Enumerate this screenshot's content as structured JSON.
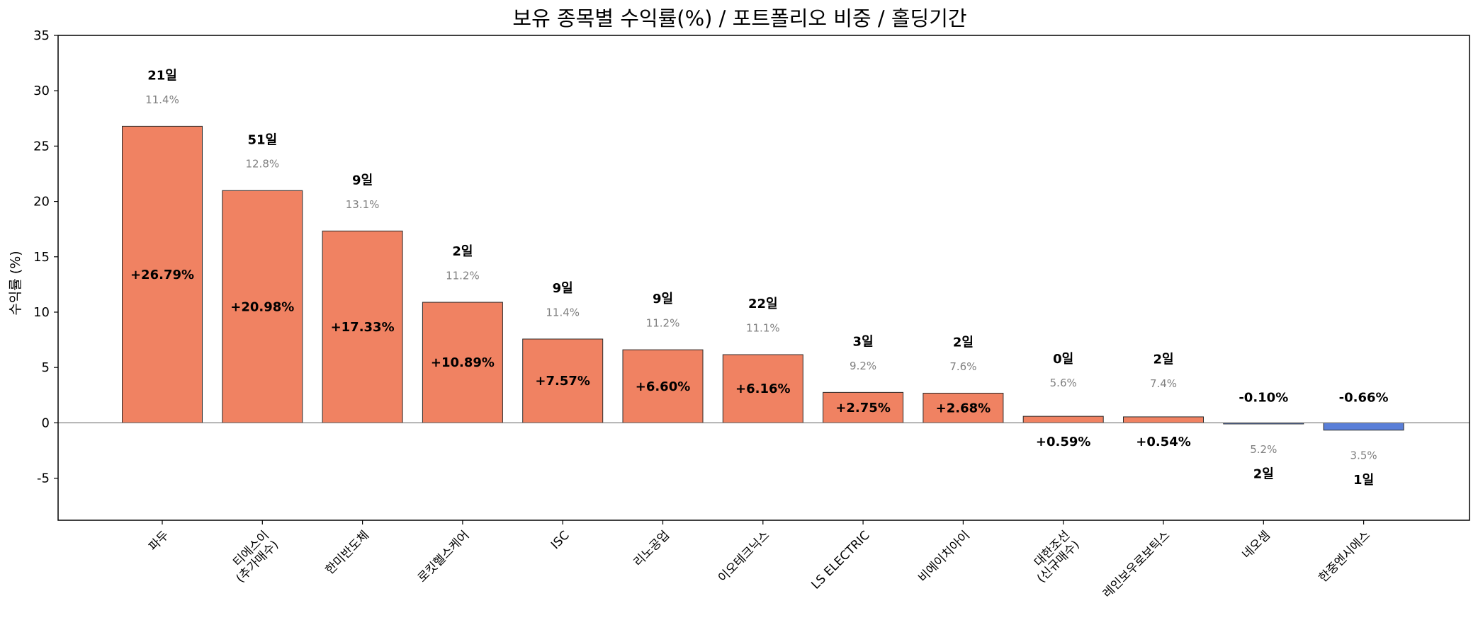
{
  "chart_data": {
    "type": "bar",
    "title": "보유 종목별 수익률(%) / 포트폴리오 비중 / 홀딩기간",
    "xlabel": "",
    "ylabel": "수익률 (%)",
    "ylim": [
      -8.8,
      35
    ],
    "yticks": [
      -5,
      0,
      5,
      10,
      15,
      20,
      25,
      30,
      35
    ],
    "grid": false,
    "colors": {
      "positive": "#f08262",
      "negative": "#5a7fd8",
      "weight_text": "#808080"
    },
    "categories": [
      [
        "파두"
      ],
      [
        "티에스이",
        "(추가매수)"
      ],
      [
        "한미반도체"
      ],
      [
        "로킷헬스케어"
      ],
      [
        "ISC"
      ],
      [
        "리노공업"
      ],
      [
        "이오테크닉스"
      ],
      [
        "LS ELECTRIC"
      ],
      [
        "비에이치아이"
      ],
      [
        "대한조선",
        "(신규매수)"
      ],
      [
        "레인보우로보틱스"
      ],
      [
        "네오셈"
      ],
      [
        "한중엔시에스"
      ]
    ],
    "values": [
      26.79,
      20.98,
      17.33,
      10.89,
      7.57,
      6.6,
      6.16,
      2.75,
      2.68,
      0.59,
      0.54,
      -0.1,
      -0.66
    ],
    "value_labels": [
      "+26.79%",
      "+20.98%",
      "+17.33%",
      "+10.89%",
      "+7.57%",
      "+6.60%",
      "+6.16%",
      "+2.75%",
      "+2.68%",
      "+0.59%",
      "+0.54%",
      "-0.10%",
      "-0.66%"
    ],
    "weights": [
      "11.4%",
      "12.8%",
      "13.1%",
      "11.2%",
      "11.4%",
      "11.2%",
      "11.1%",
      "9.2%",
      "7.6%",
      "5.6%",
      "7.4%",
      "5.2%",
      "3.5%"
    ],
    "holding_days": [
      "21일",
      "51일",
      "9일",
      "2일",
      "9일",
      "9일",
      "22일",
      "3일",
      "2일",
      "0일",
      "2일",
      "2일",
      "1일"
    ]
  }
}
